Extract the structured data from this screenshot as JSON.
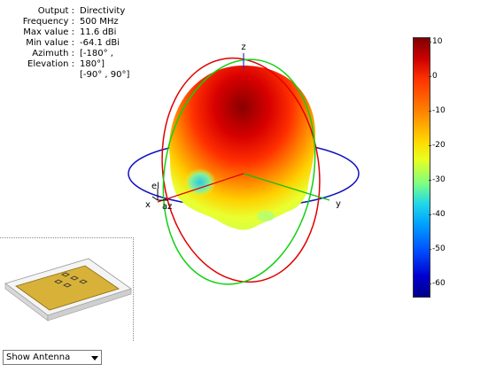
{
  "info": {
    "rows": [
      {
        "label": "Output :",
        "value": "Directivity"
      },
      {
        "label": "Frequency :",
        "value": "500 MHz"
      },
      {
        "label": "Max value :",
        "value": "11.6 dBi"
      },
      {
        "label": "Min value :",
        "value": "-64.1 dBi"
      },
      {
        "label": "Azimuth :",
        "value": "[-180° ,"
      },
      {
        "label": "Elevation :",
        "value": "180°]"
      },
      {
        "label": "",
        "value": "[-90° , 90°]"
      }
    ]
  },
  "axes": {
    "x": "x",
    "y": "y",
    "z": "z",
    "el": "el",
    "az": "az"
  },
  "colorbar": {
    "ticks": [
      "10",
      "0",
      "-10",
      "-20",
      "-30",
      "-40",
      "-50",
      "-60"
    ],
    "colors": [
      "#7f0000",
      "#ff3300",
      "#ffd800",
      "#20d8e8",
      "#0050ff",
      "#00008a"
    ]
  },
  "dropdown": {
    "selected": "Show Antenna"
  }
}
